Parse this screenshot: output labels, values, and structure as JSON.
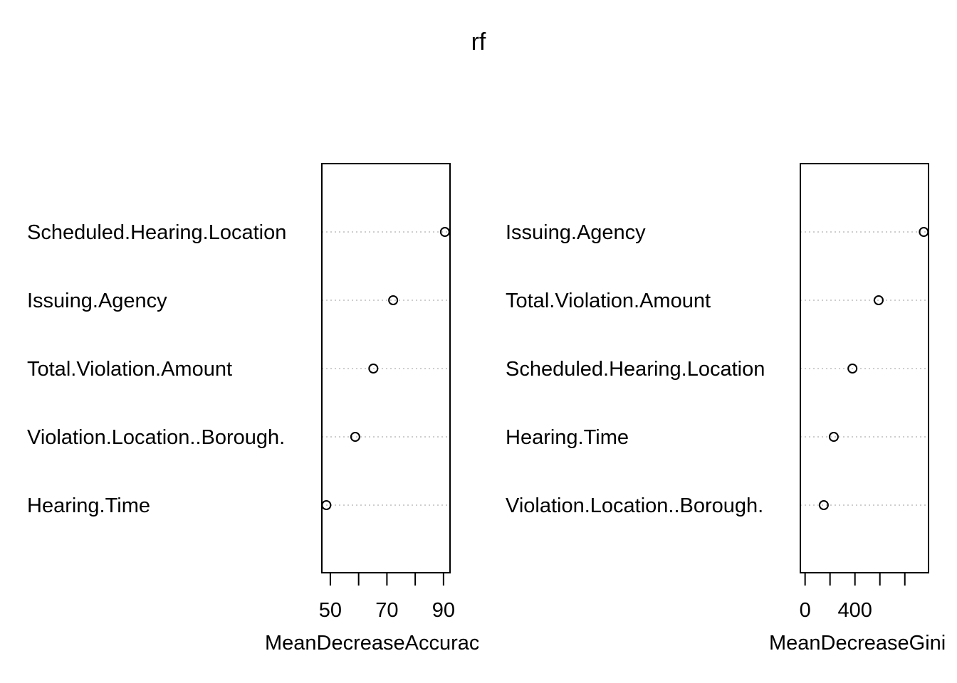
{
  "title": "rf",
  "chart_data": [
    {
      "type": "scatter",
      "style": "dotchart",
      "xlabel": "MeanDecreaseAccuracy",
      "xlim": [
        47,
        92.3
      ],
      "xticks": [
        50,
        60,
        70,
        80,
        90
      ],
      "xtick_labels": [
        "50",
        "",
        "70",
        "",
        "90"
      ],
      "categories": [
        "Scheduled.Hearing.Location",
        "Issuing.Agency",
        "Total.Violation.Amount",
        "Violation.Location..Borough.",
        "Hearing.Time"
      ],
      "values": [
        90.5,
        72.2,
        65.2,
        58.8,
        48.6
      ]
    },
    {
      "type": "scatter",
      "style": "dotchart",
      "xlabel": "MeanDecreaseGini",
      "xlim": [
        -38,
        990
      ],
      "xticks": [
        0,
        200,
        400,
        600,
        800
      ],
      "xtick_labels": [
        "0",
        "",
        "400",
        "",
        ""
      ],
      "categories": [
        "Issuing.Agency",
        "Total.Violation.Amount",
        "Scheduled.Hearing.Location",
        "Hearing.Time",
        "Violation.Location..Borough."
      ],
      "values": [
        952,
        590,
        380,
        230,
        150
      ]
    }
  ]
}
